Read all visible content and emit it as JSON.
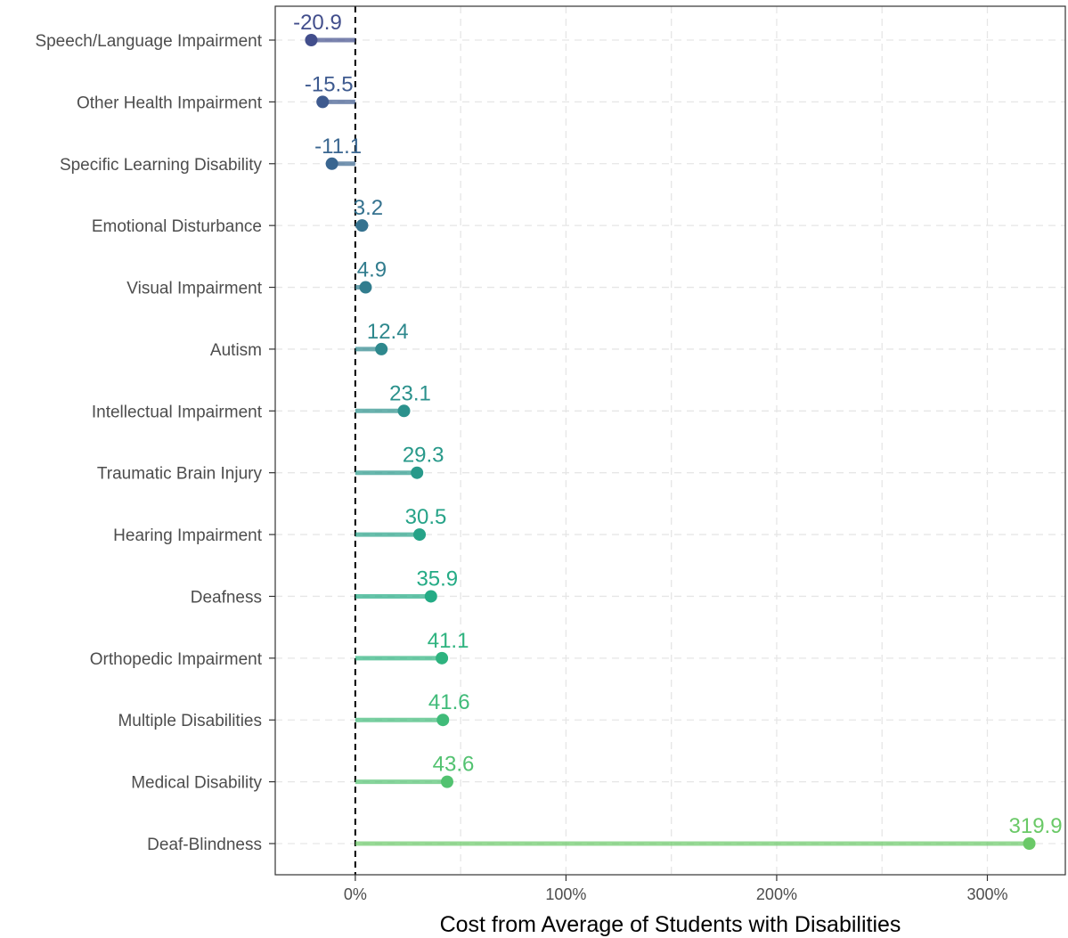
{
  "chart_data": {
    "type": "lollipop",
    "xlabel": "Cost from Average of Students with Disabilities",
    "ylabel": "",
    "xlim": [
      -38,
      337
    ],
    "x_ticks": [
      0,
      100,
      200,
      300
    ],
    "x_tick_labels": [
      "0%",
      "100%",
      "200%",
      "300%"
    ],
    "reference_line": 0,
    "grid": true,
    "categories": [
      "Speech/Language Impairment",
      "Other Health Impairment",
      "Specific Learning Disability",
      "Emotional Disturbance",
      "Visual Impairment",
      "Autism",
      "Intellectual Impairment",
      "Traumatic Brain Injury",
      "Hearing Impairment",
      "Deafness",
      "Orthopedic Impairment",
      "Multiple Disabilities",
      "Medical Disability",
      "Deaf-Blindness"
    ],
    "values": [
      -20.9,
      -15.5,
      -11.1,
      3.2,
      4.9,
      12.4,
      23.1,
      29.3,
      30.5,
      35.9,
      41.1,
      41.6,
      43.6,
      319.9
    ],
    "value_labels": [
      "-20.9",
      "-15.5",
      "-11.1",
      "3.2",
      "4.9",
      "12.4",
      "23.1",
      "29.3",
      "30.5",
      "35.9",
      "41.1",
      "41.6",
      "43.6",
      "319.9"
    ],
    "colors": [
      "#424e8c",
      "#3e5a8f",
      "#3a6690",
      "#35728f",
      "#327d8e",
      "#2e888d",
      "#2b918c",
      "#28998a",
      "#26a388",
      "#24ab85",
      "#2eb37f",
      "#40bb79",
      "#52c270",
      "#6ac967"
    ]
  }
}
